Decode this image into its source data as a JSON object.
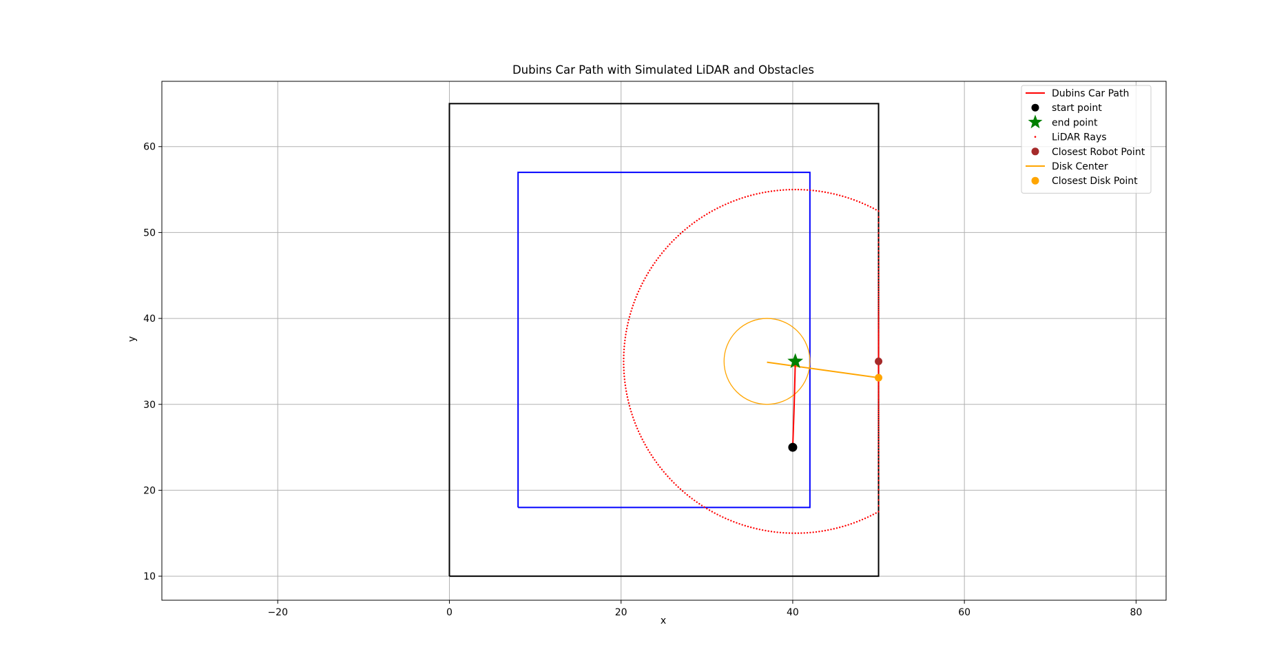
{
  "chart_data": {
    "type": "line",
    "title": "Dubins Car Path with Simulated LiDAR and Obstacles",
    "xlabel": "x",
    "ylabel": "y",
    "xlim": [
      -33.5,
      83.5
    ],
    "ylim": [
      7.2,
      67.6
    ],
    "xticks": [
      -20,
      0,
      20,
      40,
      60,
      80
    ],
    "yticks": [
      10,
      20,
      30,
      40,
      50,
      60
    ],
    "xtick_labels": [
      "−20",
      "0",
      "20",
      "40",
      "60",
      "80"
    ],
    "ytick_labels": [
      "10",
      "20",
      "30",
      "40",
      "50",
      "60"
    ],
    "grid": true,
    "legend_position": "top-right",
    "obstacles": [
      {
        "color": "#000000",
        "x": [
          0,
          50,
          50,
          0,
          0
        ],
        "y": [
          10,
          10,
          65,
          65,
          10
        ]
      },
      {
        "color": "#0000ff",
        "x": [
          8,
          42,
          42,
          8,
          8
        ],
        "y": [
          18,
          18,
          57,
          57,
          18
        ]
      }
    ],
    "disk": {
      "center": [
        37,
        35
      ],
      "radius": 5,
      "color": "#ffa500"
    },
    "series": [
      {
        "name": "Dubins Car Path",
        "type": "line",
        "color": "#ff0000",
        "x": [
          40,
          40.07,
          40.14,
          40.2,
          40.25,
          40.3
        ],
        "y": [
          25,
          27,
          29,
          31,
          33,
          35
        ]
      },
      {
        "name": "start point",
        "type": "scatter",
        "color": "#000000",
        "marker": "circle",
        "x": [
          40
        ],
        "y": [
          25
        ]
      },
      {
        "name": "end point",
        "type": "scatter",
        "color": "#008000",
        "marker": "star",
        "x": [
          40.3
        ],
        "y": [
          35
        ]
      },
      {
        "name": "LiDAR Rays",
        "type": "scatter",
        "color": "#ff0000",
        "marker": "dot",
        "center": [
          40.3,
          35
        ],
        "radius": 20,
        "clip_x": 50
      },
      {
        "name": "Closest Robot Point",
        "type": "scatter",
        "color": "#a52a2a",
        "marker": "circle",
        "x": [
          50
        ],
        "y": [
          35
        ]
      },
      {
        "name": "Disk Center",
        "type": "line",
        "color": "#ffa500",
        "x": [
          37,
          50
        ],
        "y": [
          34.9,
          33.1
        ]
      },
      {
        "name": "Closest Disk Point",
        "type": "scatter",
        "color": "#ffa500",
        "marker": "circle",
        "x": [
          50
        ],
        "y": [
          33.1
        ]
      }
    ]
  }
}
